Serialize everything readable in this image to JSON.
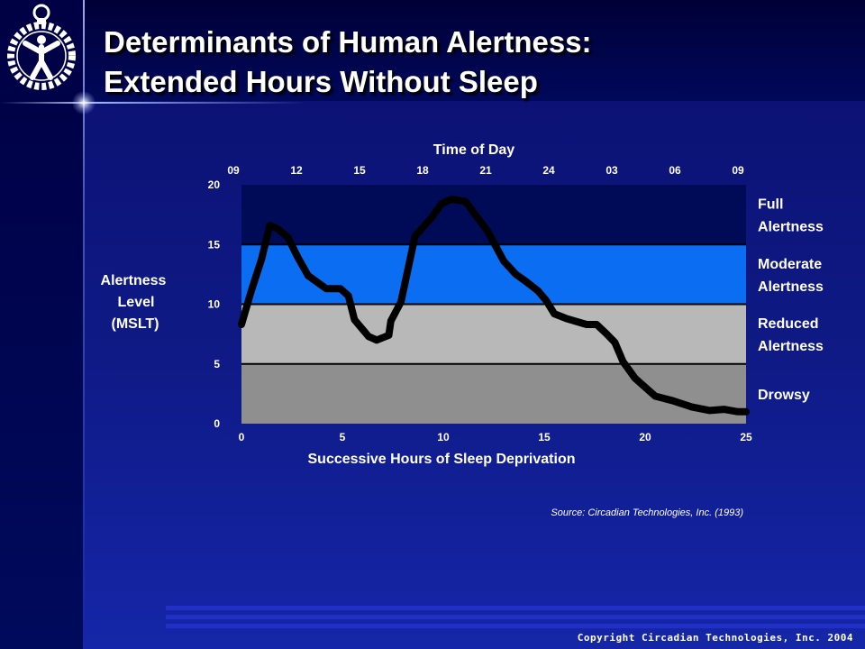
{
  "slide": {
    "title_line1": "Determinants of Human Alertness:",
    "title_line2": "Extended Hours Without Sleep",
    "copyright": "Copyright Circadian Technologies, Inc. 2004",
    "logo_icon": "circadian-figure-icon"
  },
  "colors": {
    "background": "#0f1a86",
    "band_full": "#000b58",
    "band_moderate": "#0a6df2",
    "band_reduced": "#b8b8b8",
    "band_drowsy": "#8f8f8f",
    "curve": "#000000",
    "text": "#ffffff"
  },
  "chart_data": {
    "type": "line",
    "x_title": "Successive Hours of Sleep Deprivation",
    "x_top_title": "Time of Day",
    "y_title_lines": [
      "Alertness",
      "Level",
      "(MSLT)"
    ],
    "xlim": [
      0,
      25
    ],
    "ylim": [
      0,
      20
    ],
    "x_ticks": [
      "0",
      "5",
      "10",
      "15",
      "20",
      "25"
    ],
    "y_ticks": [
      "0",
      "5",
      "10",
      "15",
      "20"
    ],
    "time_of_day_ticks": [
      "09",
      "12",
      "15",
      "18",
      "21",
      "24",
      "03",
      "06",
      "09"
    ],
    "bands": [
      {
        "lines": [
          "Full",
          "Alertness"
        ],
        "from": 15,
        "to": 20
      },
      {
        "lines": [
          "Moderate",
          "Alertness"
        ],
        "from": 10,
        "to": 15
      },
      {
        "lines": [
          "Reduced",
          "Alertness"
        ],
        "from": 5,
        "to": 10
      },
      {
        "lines": [
          "Drowsy"
        ],
        "from": 0,
        "to": 5
      }
    ],
    "series": [
      {
        "x": [
          0,
          0.5,
          1,
          1.4,
          1.8,
          2.3,
          2.8,
          3.3,
          4.2,
          4.9,
          5.3,
          5.6,
          6.3,
          6.7,
          7.3,
          7.4,
          7.9,
          8.6,
          9.4,
          9.9,
          10.4,
          11.1,
          12.2,
          13.0,
          13.6,
          14.1,
          14.7,
          15.1,
          15.5,
          16.1,
          17.1,
          17.6,
          18.1,
          18.5,
          18.9,
          19.5,
          20.5,
          21.4,
          22.3,
          23.2,
          23.9,
          24.6,
          25
        ],
        "y": [
          8.3,
          11.2,
          13.8,
          16.6,
          16.3,
          15.6,
          13.9,
          12.4,
          11.3,
          11.3,
          10.7,
          8.7,
          7.3,
          7.0,
          7.4,
          8.6,
          10.2,
          15.7,
          17.2,
          18.4,
          18.8,
          18.6,
          16.1,
          13.6,
          12.5,
          11.9,
          11.1,
          10.3,
          9.2,
          8.8,
          8.3,
          8.3,
          7.5,
          6.8,
          5.2,
          3.8,
          2.3,
          1.9,
          1.4,
          1.1,
          1.2,
          1.0,
          1.0
        ]
      }
    ],
    "source": "Source: Circadian Technologies, Inc. (1993)"
  }
}
